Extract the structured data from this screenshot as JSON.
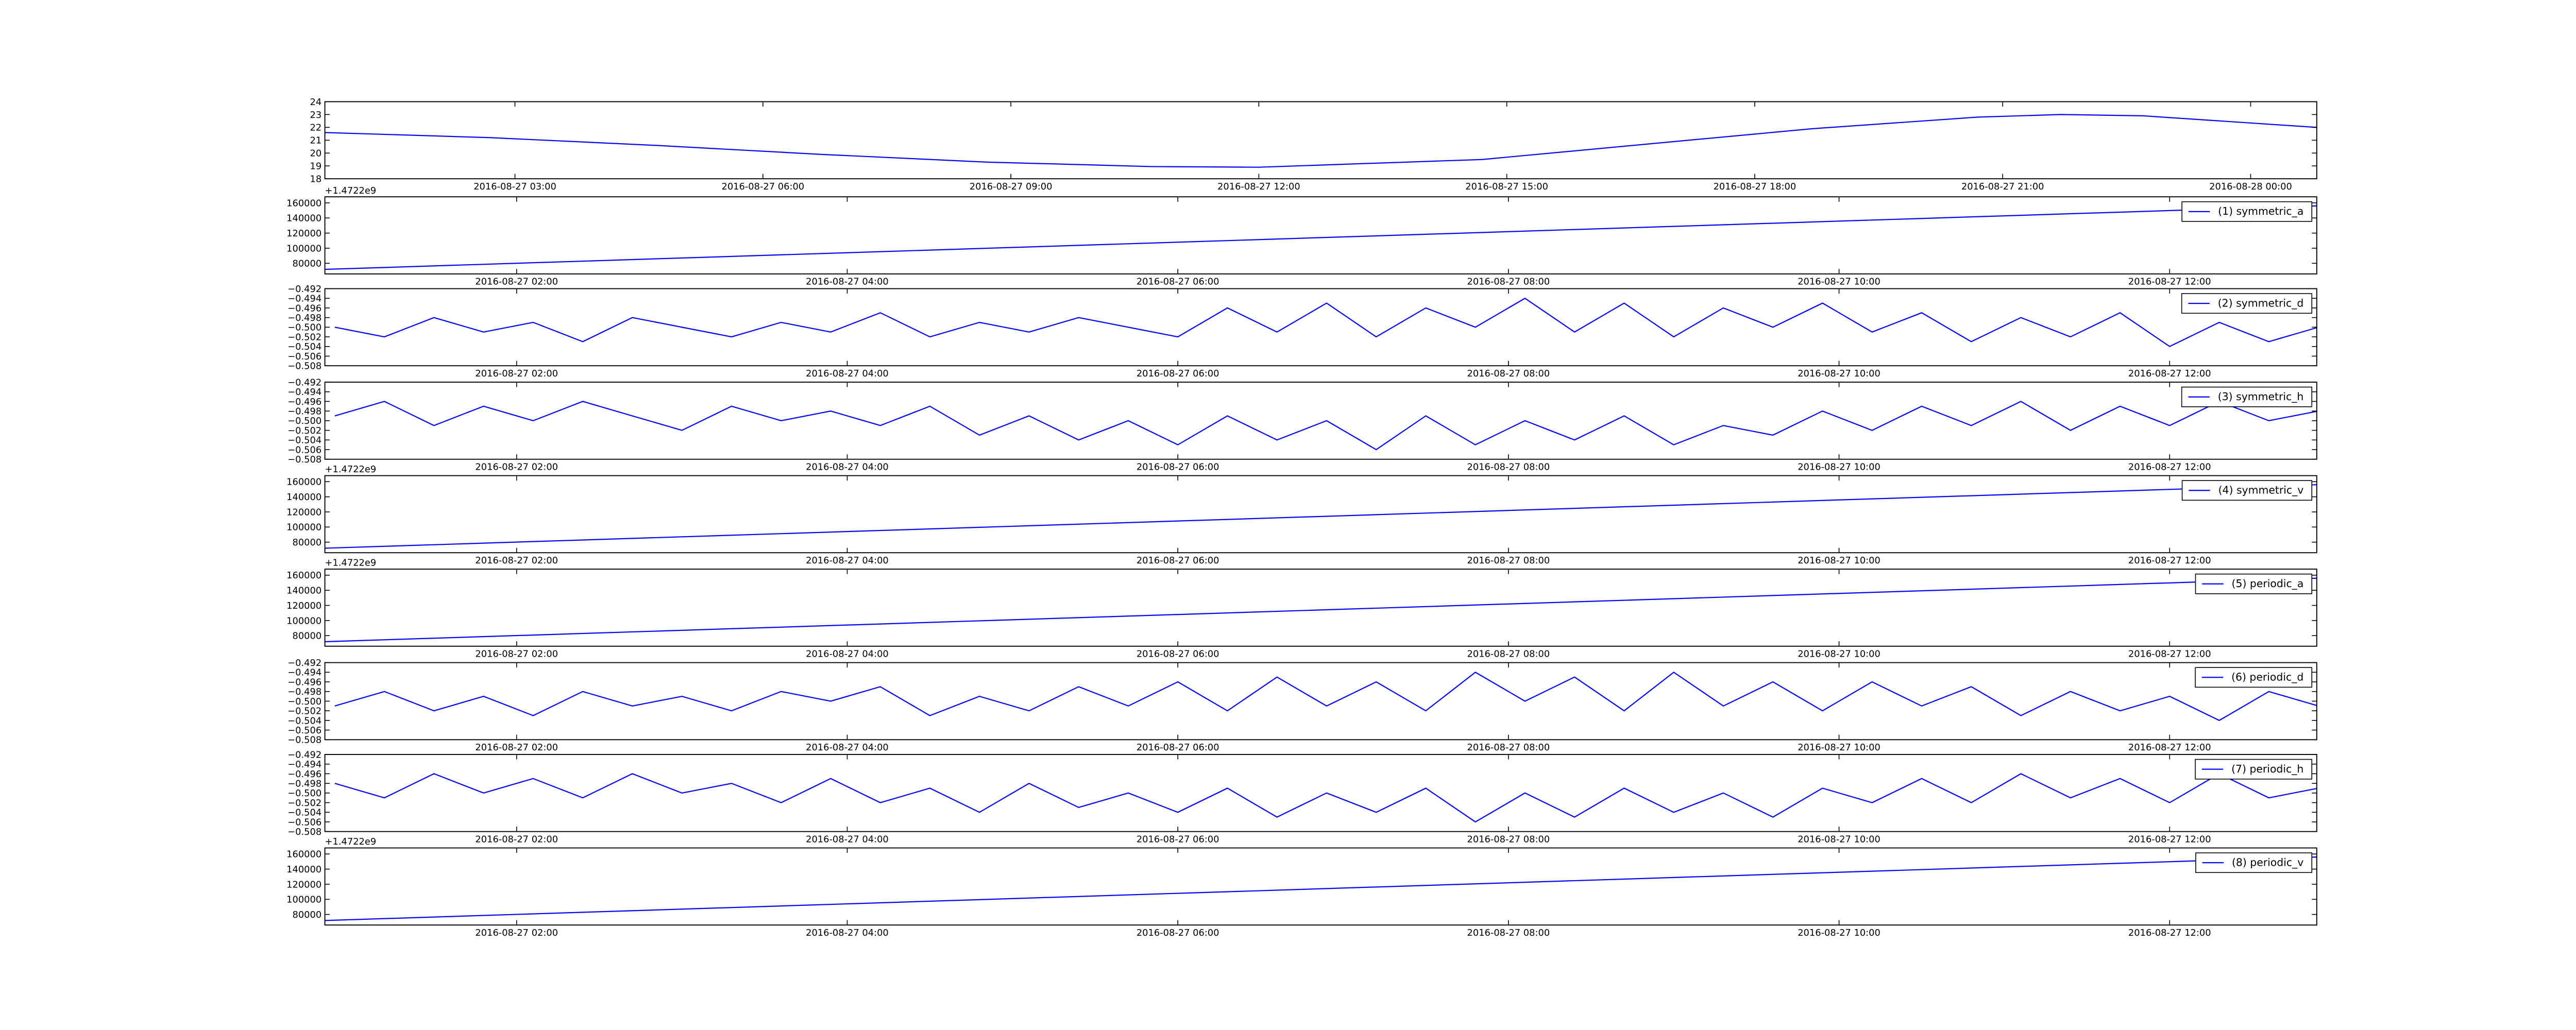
{
  "chart_data": [
    {
      "type": "line",
      "x": [
        0.7,
        2.7,
        4.7,
        6.7,
        8.7,
        10.7,
        12.0,
        14.7,
        16.7,
        18.7,
        20.7,
        21.7,
        22.7,
        24.8
      ],
      "series": [
        {
          "color": "#0000ff",
          "values": [
            21.6,
            21.2,
            20.6,
            19.9,
            19.3,
            18.95,
            18.9,
            19.5,
            20.7,
            21.9,
            22.8,
            23.0,
            22.9,
            22.0
          ]
        }
      ],
      "xlim": [
        0.7,
        24.8
      ],
      "xticks": [
        {
          "value": 3,
          "label": "2016-08-27 03:00"
        },
        {
          "value": 6,
          "label": "2016-08-27 06:00"
        },
        {
          "value": 9,
          "label": "2016-08-27 09:00"
        },
        {
          "value": 12,
          "label": "2016-08-27 12:00"
        },
        {
          "value": 15,
          "label": "2016-08-27 15:00"
        },
        {
          "value": 18,
          "label": "2016-08-27 18:00"
        },
        {
          "value": 21,
          "label": "2016-08-27 21:00"
        },
        {
          "value": 24,
          "label": "2016-08-28 00:00"
        }
      ],
      "ylim": [
        18,
        24
      ],
      "yticks": [
        18,
        19,
        20,
        21,
        22,
        23,
        24
      ]
    },
    {
      "type": "line",
      "x": [
        0.84,
        12.89
      ],
      "series": [
        {
          "name": "(1) symmetric_a",
          "color": "#0000ff",
          "values": [
            72000,
            156000
          ]
        }
      ],
      "xlim": [
        0.84,
        12.89
      ],
      "xticks": [
        {
          "value": 2,
          "label": "2016-08-27 02:00"
        },
        {
          "value": 4,
          "label": "2016-08-27 04:00"
        },
        {
          "value": 6,
          "label": "2016-08-27 06:00"
        },
        {
          "value": 8,
          "label": "2016-08-27 08:00"
        },
        {
          "value": 10,
          "label": "2016-08-27 10:00"
        },
        {
          "value": 12,
          "label": "2016-08-27 12:00"
        }
      ],
      "ylim": [
        66000,
        168000
      ],
      "yticks": [
        80000,
        100000,
        120000,
        140000,
        160000
      ],
      "offset_text": "+1.4722e9",
      "legend": "upper right"
    },
    {
      "type": "line",
      "x": [
        0.9,
        1.2,
        1.5,
        1.8,
        2.1,
        2.4,
        2.7,
        3.0,
        3.3,
        3.6,
        3.9,
        4.2,
        4.5,
        4.8,
        5.1,
        5.4,
        5.7,
        6.0,
        6.3,
        6.6,
        6.9,
        7.2,
        7.5,
        7.8,
        8.1,
        8.4,
        8.7,
        9.0,
        9.3,
        9.6,
        9.9,
        10.2,
        10.5,
        10.8,
        11.1,
        11.4,
        11.7,
        12.0,
        12.3,
        12.6,
        12.9
      ],
      "series": [
        {
          "name": "(2) symmetric_d",
          "color": "#0000ff",
          "values": [
            -0.5,
            -0.502,
            -0.498,
            -0.501,
            -0.499,
            -0.503,
            -0.498,
            -0.5,
            -0.502,
            -0.499,
            -0.501,
            -0.497,
            -0.502,
            -0.499,
            -0.501,
            -0.498,
            -0.5,
            -0.502,
            -0.496,
            -0.501,
            -0.495,
            -0.502,
            -0.496,
            -0.5,
            -0.494,
            -0.501,
            -0.495,
            -0.502,
            -0.496,
            -0.5,
            -0.495,
            -0.501,
            -0.497,
            -0.503,
            -0.498,
            -0.502,
            -0.497,
            -0.504,
            -0.499,
            -0.503,
            -0.5
          ]
        }
      ],
      "xlim": [
        0.84,
        12.89
      ],
      "xticks": [
        {
          "value": 2,
          "label": "2016-08-27 02:00"
        },
        {
          "value": 4,
          "label": "2016-08-27 04:00"
        },
        {
          "value": 6,
          "label": "2016-08-27 06:00"
        },
        {
          "value": 8,
          "label": "2016-08-27 08:00"
        },
        {
          "value": 10,
          "label": "2016-08-27 10:00"
        },
        {
          "value": 12,
          "label": "2016-08-27 12:00"
        }
      ],
      "ylim": [
        -0.508,
        -0.492
      ],
      "yticks": [
        {
          "value": -0.508,
          "label": "−0.508"
        },
        {
          "value": -0.506,
          "label": "−0.506"
        },
        {
          "value": -0.504,
          "label": "−0.504"
        },
        {
          "value": -0.502,
          "label": "−0.502"
        },
        {
          "value": -0.5,
          "label": "−0.500"
        },
        {
          "value": -0.498,
          "label": "−0.498"
        },
        {
          "value": -0.496,
          "label": "−0.496"
        },
        {
          "value": -0.494,
          "label": "−0.494"
        },
        {
          "value": -0.492,
          "label": "−0.492"
        }
      ],
      "legend": "upper right"
    },
    {
      "type": "line",
      "x": [
        0.9,
        1.2,
        1.5,
        1.8,
        2.1,
        2.4,
        2.7,
        3.0,
        3.3,
        3.6,
        3.9,
        4.2,
        4.5,
        4.8,
        5.1,
        5.4,
        5.7,
        6.0,
        6.3,
        6.6,
        6.9,
        7.2,
        7.5,
        7.8,
        8.1,
        8.4,
        8.7,
        9.0,
        9.3,
        9.6,
        9.9,
        10.2,
        10.5,
        10.8,
        11.1,
        11.4,
        11.7,
        12.0,
        12.3,
        12.6,
        12.9
      ],
      "series": [
        {
          "name": "(3) symmetric_h",
          "color": "#0000ff",
          "values": [
            -0.499,
            -0.496,
            -0.501,
            -0.497,
            -0.5,
            -0.496,
            -0.499,
            -0.502,
            -0.497,
            -0.5,
            -0.498,
            -0.501,
            -0.497,
            -0.503,
            -0.499,
            -0.504,
            -0.5,
            -0.505,
            -0.499,
            -0.504,
            -0.5,
            -0.506,
            -0.499,
            -0.505,
            -0.5,
            -0.504,
            -0.499,
            -0.505,
            -0.501,
            -0.503,
            -0.498,
            -0.502,
            -0.497,
            -0.501,
            -0.496,
            -0.502,
            -0.497,
            -0.501,
            -0.496,
            -0.5,
            -0.498
          ]
        }
      ],
      "xlim": [
        0.84,
        12.89
      ],
      "xticks": [
        {
          "value": 2,
          "label": "2016-08-27 02:00"
        },
        {
          "value": 4,
          "label": "2016-08-27 04:00"
        },
        {
          "value": 6,
          "label": "2016-08-27 06:00"
        },
        {
          "value": 8,
          "label": "2016-08-27 08:00"
        },
        {
          "value": 10,
          "label": "2016-08-27 10:00"
        },
        {
          "value": 12,
          "label": "2016-08-27 12:00"
        }
      ],
      "ylim": [
        -0.508,
        -0.492
      ],
      "yticks": [
        {
          "value": -0.508,
          "label": "−0.508"
        },
        {
          "value": -0.506,
          "label": "−0.506"
        },
        {
          "value": -0.504,
          "label": "−0.504"
        },
        {
          "value": -0.502,
          "label": "−0.502"
        },
        {
          "value": -0.5,
          "label": "−0.500"
        },
        {
          "value": -0.498,
          "label": "−0.498"
        },
        {
          "value": -0.496,
          "label": "−0.496"
        },
        {
          "value": -0.494,
          "label": "−0.494"
        },
        {
          "value": -0.492,
          "label": "−0.492"
        }
      ],
      "legend": "upper right"
    },
    {
      "type": "line",
      "x": [
        0.84,
        12.89
      ],
      "series": [
        {
          "name": "(4) symmetric_v",
          "color": "#0000ff",
          "values": [
            72000,
            156000
          ]
        }
      ],
      "xlim": [
        0.84,
        12.89
      ],
      "xticks": [
        {
          "value": 2,
          "label": "2016-08-27 02:00"
        },
        {
          "value": 4,
          "label": "2016-08-27 04:00"
        },
        {
          "value": 6,
          "label": "2016-08-27 06:00"
        },
        {
          "value": 8,
          "label": "2016-08-27 08:00"
        },
        {
          "value": 10,
          "label": "2016-08-27 10:00"
        },
        {
          "value": 12,
          "label": "2016-08-27 12:00"
        }
      ],
      "ylim": [
        66000,
        168000
      ],
      "yticks": [
        80000,
        100000,
        120000,
        140000,
        160000
      ],
      "offset_text": "+1.4722e9",
      "legend": "upper right"
    },
    {
      "type": "line",
      "x": [
        0.84,
        12.89
      ],
      "series": [
        {
          "name": "(5) periodic_a",
          "color": "#0000ff",
          "values": [
            72000,
            156000
          ]
        }
      ],
      "xlim": [
        0.84,
        12.89
      ],
      "xticks": [
        {
          "value": 2,
          "label": "2016-08-27 02:00"
        },
        {
          "value": 4,
          "label": "2016-08-27 04:00"
        },
        {
          "value": 6,
          "label": "2016-08-27 06:00"
        },
        {
          "value": 8,
          "label": "2016-08-27 08:00"
        },
        {
          "value": 10,
          "label": "2016-08-27 10:00"
        },
        {
          "value": 12,
          "label": "2016-08-27 12:00"
        }
      ],
      "ylim": [
        66000,
        168000
      ],
      "yticks": [
        80000,
        100000,
        120000,
        140000,
        160000
      ],
      "offset_text": "+1.4722e9",
      "legend": "upper right"
    },
    {
      "type": "line",
      "x": [
        0.9,
        1.2,
        1.5,
        1.8,
        2.1,
        2.4,
        2.7,
        3.0,
        3.3,
        3.6,
        3.9,
        4.2,
        4.5,
        4.8,
        5.1,
        5.4,
        5.7,
        6.0,
        6.3,
        6.6,
        6.9,
        7.2,
        7.5,
        7.8,
        8.1,
        8.4,
        8.7,
        9.0,
        9.3,
        9.6,
        9.9,
        10.2,
        10.5,
        10.8,
        11.1,
        11.4,
        11.7,
        12.0,
        12.3,
        12.6,
        12.9
      ],
      "series": [
        {
          "name": "(6) periodic_d",
          "color": "#0000ff",
          "values": [
            -0.501,
            -0.498,
            -0.502,
            -0.499,
            -0.503,
            -0.498,
            -0.501,
            -0.499,
            -0.502,
            -0.498,
            -0.5,
            -0.497,
            -0.503,
            -0.499,
            -0.502,
            -0.497,
            -0.501,
            -0.496,
            -0.502,
            -0.495,
            -0.501,
            -0.496,
            -0.502,
            -0.494,
            -0.5,
            -0.495,
            -0.502,
            -0.494,
            -0.501,
            -0.496,
            -0.502,
            -0.496,
            -0.501,
            -0.497,
            -0.503,
            -0.498,
            -0.502,
            -0.499,
            -0.504,
            -0.498,
            -0.501
          ]
        }
      ],
      "xlim": [
        0.84,
        12.89
      ],
      "xticks": [
        {
          "value": 2,
          "label": "2016-08-27 02:00"
        },
        {
          "value": 4,
          "label": "2016-08-27 04:00"
        },
        {
          "value": 6,
          "label": "2016-08-27 06:00"
        },
        {
          "value": 8,
          "label": "2016-08-27 08:00"
        },
        {
          "value": 10,
          "label": "2016-08-27 10:00"
        },
        {
          "value": 12,
          "label": "2016-08-27 12:00"
        }
      ],
      "ylim": [
        -0.508,
        -0.492
      ],
      "yticks": [
        {
          "value": -0.508,
          "label": "−0.508"
        },
        {
          "value": -0.506,
          "label": "−0.506"
        },
        {
          "value": -0.504,
          "label": "−0.504"
        },
        {
          "value": -0.502,
          "label": "−0.502"
        },
        {
          "value": -0.5,
          "label": "−0.500"
        },
        {
          "value": -0.498,
          "label": "−0.498"
        },
        {
          "value": -0.496,
          "label": "−0.496"
        },
        {
          "value": -0.494,
          "label": "−0.494"
        },
        {
          "value": -0.492,
          "label": "−0.492"
        }
      ],
      "legend": "upper right"
    },
    {
      "type": "line",
      "x": [
        0.9,
        1.2,
        1.5,
        1.8,
        2.1,
        2.4,
        2.7,
        3.0,
        3.3,
        3.6,
        3.9,
        4.2,
        4.5,
        4.8,
        5.1,
        5.4,
        5.7,
        6.0,
        6.3,
        6.6,
        6.9,
        7.2,
        7.5,
        7.8,
        8.1,
        8.4,
        8.7,
        9.0,
        9.3,
        9.6,
        9.9,
        10.2,
        10.5,
        10.8,
        11.1,
        11.4,
        11.7,
        12.0,
        12.3,
        12.6,
        12.9
      ],
      "series": [
        {
          "name": "(7) periodic_h",
          "color": "#0000ff",
          "values": [
            -0.498,
            -0.501,
            -0.496,
            -0.5,
            -0.497,
            -0.501,
            -0.496,
            -0.5,
            -0.498,
            -0.502,
            -0.497,
            -0.502,
            -0.499,
            -0.504,
            -0.498,
            -0.503,
            -0.5,
            -0.504,
            -0.499,
            -0.505,
            -0.5,
            -0.504,
            -0.499,
            -0.506,
            -0.5,
            -0.505,
            -0.499,
            -0.504,
            -0.5,
            -0.505,
            -0.499,
            -0.502,
            -0.497,
            -0.502,
            -0.496,
            -0.501,
            -0.497,
            -0.502,
            -0.496,
            -0.501,
            -0.499
          ]
        }
      ],
      "xlim": [
        0.84,
        12.89
      ],
      "xticks": [
        {
          "value": 2,
          "label": "2016-08-27 02:00"
        },
        {
          "value": 4,
          "label": "2016-08-27 04:00"
        },
        {
          "value": 6,
          "label": "2016-08-27 06:00"
        },
        {
          "value": 8,
          "label": "2016-08-27 08:00"
        },
        {
          "value": 10,
          "label": "2016-08-27 10:00"
        },
        {
          "value": 12,
          "label": "2016-08-27 12:00"
        }
      ],
      "ylim": [
        -0.508,
        -0.492
      ],
      "yticks": [
        {
          "value": -0.508,
          "label": "−0.508"
        },
        {
          "value": -0.506,
          "label": "−0.506"
        },
        {
          "value": -0.504,
          "label": "−0.504"
        },
        {
          "value": -0.502,
          "label": "−0.502"
        },
        {
          "value": -0.5,
          "label": "−0.500"
        },
        {
          "value": -0.498,
          "label": "−0.498"
        },
        {
          "value": -0.496,
          "label": "−0.496"
        },
        {
          "value": -0.494,
          "label": "−0.494"
        },
        {
          "value": -0.492,
          "label": "−0.492"
        }
      ],
      "legend": "upper right"
    },
    {
      "type": "line",
      "x": [
        0.84,
        12.89
      ],
      "series": [
        {
          "name": "(8) periodic_v",
          "color": "#0000ff",
          "values": [
            72000,
            156000
          ]
        }
      ],
      "xlim": [
        0.84,
        12.89
      ],
      "xticks": [
        {
          "value": 2,
          "label": "2016-08-27 02:00"
        },
        {
          "value": 4,
          "label": "2016-08-27 04:00"
        },
        {
          "value": 6,
          "label": "2016-08-27 06:00"
        },
        {
          "value": 8,
          "label": "2016-08-27 08:00"
        },
        {
          "value": 10,
          "label": "2016-08-27 10:00"
        },
        {
          "value": 12,
          "label": "2016-08-27 12:00"
        }
      ],
      "ylim": [
        66000,
        168000
      ],
      "yticks": [
        80000,
        100000,
        120000,
        140000,
        160000
      ],
      "offset_text": "+1.4722e9",
      "legend": "upper right"
    }
  ]
}
